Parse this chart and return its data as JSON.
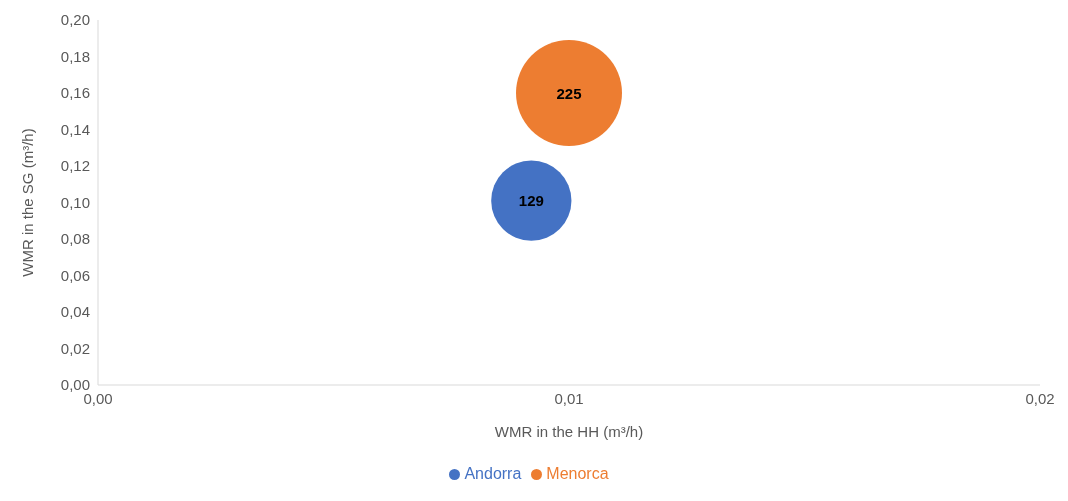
{
  "chart_data": {
    "type": "bubble",
    "xlabel": "WMR in the HH (m³/h)",
    "ylabel": "WMR in the SG (m³/h)",
    "xlim": [
      0,
      0.02
    ],
    "xticks": [
      {
        "value": 0,
        "label": "0,00"
      },
      {
        "value": 0.01,
        "label": "0,01"
      },
      {
        "value": 0.02,
        "label": "0,02"
      }
    ],
    "ylim": [
      0,
      0.2
    ],
    "yticks": [
      {
        "value": 0,
        "label": "0,00"
      },
      {
        "value": 0.02,
        "label": "0,02"
      },
      {
        "value": 0.04,
        "label": "0,04"
      },
      {
        "value": 0.06,
        "label": "0,06"
      },
      {
        "value": 0.08,
        "label": "0,08"
      },
      {
        "value": 0.1,
        "label": "0,10"
      },
      {
        "value": 0.12,
        "label": "0,12"
      },
      {
        "value": 0.14,
        "label": "0,14"
      },
      {
        "value": 0.16,
        "label": "0,16"
      },
      {
        "value": 0.18,
        "label": "0,18"
      },
      {
        "value": 0.2,
        "label": "0,20"
      }
    ],
    "series": [
      {
        "name": "Andorra",
        "color": "#4472c4",
        "x": [
          0.0092
        ],
        "values": [
          0.101
        ],
        "sizes": [
          129
        ],
        "value_labels": [
          "129"
        ]
      },
      {
        "name": "Menorca",
        "color": "#ed7d31",
        "x": [
          0.01
        ],
        "values": [
          0.16
        ],
        "sizes": [
          225
        ],
        "value_labels": [
          "225"
        ]
      }
    ],
    "grid": false,
    "legend": "bottom"
  }
}
